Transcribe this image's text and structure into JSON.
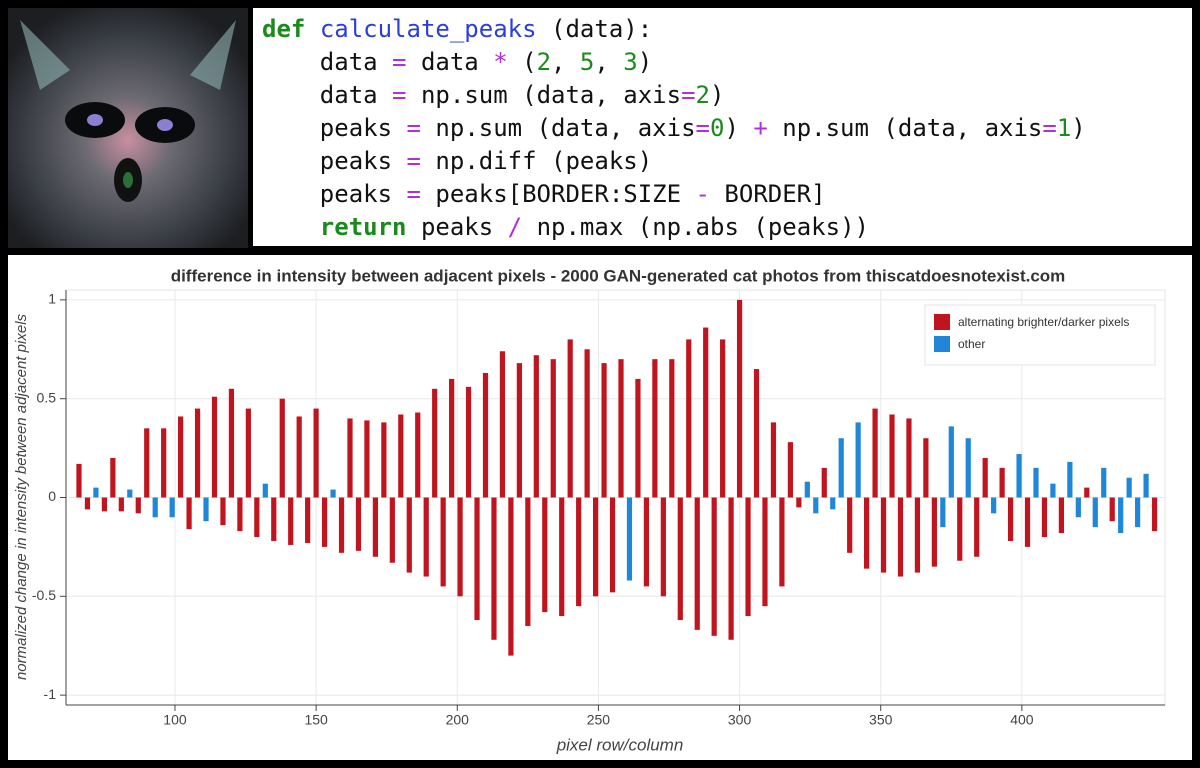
{
  "code": {
    "lines": [
      "def calculate_peaks (data):",
      "    data = data * (2, 5, 3)",
      "    data = np.sum (data, axis=2)",
      "    peaks = np.sum (data, axis=0) + np.sum (data, axis=1)",
      "    peaks = np.diff (peaks)",
      "    peaks = peaks[BORDER:SIZE - BORDER]",
      "    return peaks / np.max (np.abs (peaks))"
    ]
  },
  "chart_data": {
    "type": "bar",
    "title": "difference in intensity between adjacent pixels - 2000 GAN-generated cat photos from thiscatdoesnotexist.com",
    "x_label": "pixel row/column",
    "y_label": "normalized change in intensity between adjacent pixels",
    "xlim": [
      61.4,
      450.7
    ],
    "xticks": [
      100,
      150,
      200,
      250,
      300,
      350,
      400
    ],
    "ylim": [
      -1.05,
      1.05
    ],
    "yticks": [
      -1,
      -0.5,
      0,
      0.5,
      1
    ],
    "grid": true,
    "legend": "top-right",
    "x": [
      66,
      69,
      72,
      75,
      78,
      81,
      84,
      87,
      90,
      93,
      96,
      99,
      102,
      105,
      108,
      111,
      114,
      117,
      120,
      123,
      126,
      129,
      132,
      135,
      138,
      141,
      144,
      147,
      150,
      153,
      156,
      159,
      162,
      165,
      168,
      171,
      174,
      177,
      180,
      183,
      186,
      189,
      192,
      195,
      198,
      201,
      204,
      207,
      210,
      213,
      216,
      219,
      222,
      225,
      228,
      231,
      234,
      237,
      240,
      243,
      246,
      249,
      252,
      255,
      258,
      261,
      264,
      267,
      270,
      273,
      276,
      279,
      282,
      285,
      288,
      291,
      294,
      297,
      300,
      303,
      306,
      309,
      312,
      315,
      318,
      321,
      324,
      327,
      330,
      333,
      336,
      339,
      342,
      345,
      348,
      351,
      354,
      357,
      360,
      363,
      366,
      369,
      372,
      375,
      378,
      381,
      384,
      387,
      390,
      393,
      396,
      399,
      402,
      405,
      408,
      411,
      414,
      417,
      420,
      423,
      426,
      429,
      432,
      435,
      438,
      441,
      444,
      447
    ],
    "series": [
      {
        "name": "alternating brighter/darker pixels",
        "color": "#c0141e",
        "values": [
          0.17,
          -0.06,
          null,
          -0.07,
          0.2,
          -0.07,
          null,
          -0.08,
          0.35,
          null,
          0.35,
          null,
          0.41,
          -0.16,
          0.45,
          null,
          0.51,
          -0.14,
          0.55,
          -0.17,
          0.45,
          -0.2,
          null,
          -0.22,
          0.5,
          -0.24,
          0.41,
          -0.23,
          0.45,
          -0.25,
          null,
          -0.28,
          0.4,
          -0.27,
          0.39,
          -0.3,
          0.38,
          -0.33,
          0.42,
          -0.38,
          0.43,
          -0.4,
          0.55,
          -0.45,
          0.6,
          -0.5,
          0.56,
          -0.62,
          0.63,
          -0.72,
          0.74,
          -0.8,
          0.68,
          -0.65,
          0.72,
          -0.58,
          0.7,
          -0.6,
          0.8,
          -0.55,
          0.75,
          -0.5,
          0.68,
          -0.48,
          0.7,
          null,
          0.6,
          -0.45,
          0.7,
          -0.5,
          0.7,
          -0.62,
          0.8,
          -0.67,
          0.86,
          -0.7,
          0.8,
          -0.72,
          1,
          -0.6,
          0.65,
          -0.55,
          0.38,
          -0.45,
          0.28,
          -0.05,
          null,
          null,
          0.15,
          null,
          null,
          -0.28,
          null,
          -0.36,
          0.45,
          -0.38,
          0.42,
          -0.4,
          0.4,
          -0.38,
          0.3,
          -0.35,
          null,
          null,
          -0.32,
          null,
          -0.3,
          0.2,
          null,
          0.15,
          -0.22,
          null,
          -0.25,
          null,
          -0.2,
          null,
          -0.18,
          null,
          null,
          0.05,
          null,
          null,
          -0.12,
          null,
          null,
          null,
          null,
          -0.17
        ]
      },
      {
        "name": "other",
        "color": "#1f86d8",
        "values": [
          null,
          null,
          0.05,
          null,
          null,
          null,
          0.04,
          null,
          null,
          -0.1,
          null,
          -0.1,
          null,
          null,
          null,
          -0.12,
          null,
          null,
          null,
          null,
          null,
          null,
          0.07,
          null,
          null,
          null,
          null,
          null,
          null,
          null,
          0.04,
          null,
          null,
          null,
          null,
          null,
          null,
          null,
          null,
          null,
          null,
          null,
          null,
          null,
          null,
          null,
          null,
          null,
          null,
          null,
          null,
          null,
          null,
          null,
          null,
          null,
          null,
          null,
          null,
          null,
          null,
          null,
          null,
          null,
          null,
          -0.42,
          null,
          null,
          null,
          null,
          null,
          null,
          null,
          null,
          null,
          null,
          null,
          null,
          null,
          null,
          null,
          null,
          null,
          null,
          null,
          null,
          0.08,
          -0.08,
          null,
          -0.06,
          0.3,
          null,
          0.38,
          null,
          null,
          null,
          null,
          null,
          null,
          null,
          null,
          null,
          -0.15,
          0.36,
          null,
          0.3,
          null,
          null,
          -0.08,
          null,
          null,
          0.22,
          null,
          0.15,
          null,
          0.07,
          null,
          0.18,
          -0.1,
          null,
          -0.15,
          0.15,
          null,
          -0.18,
          0.1,
          -0.15,
          0.12,
          null
        ]
      }
    ]
  }
}
